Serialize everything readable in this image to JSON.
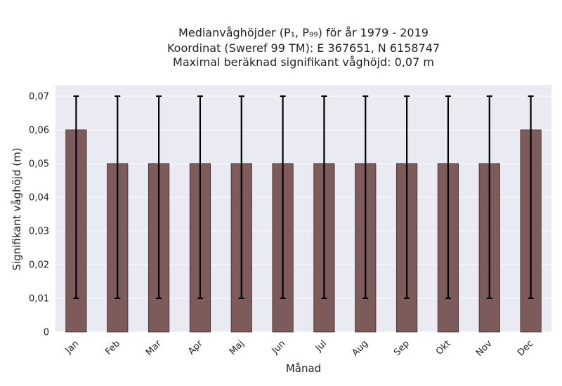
{
  "chart_data": {
    "type": "bar",
    "title": [
      "Medianvåghöjder (P₁, P₉₉) för år 1979 - 2019",
      "Koordinat (Sweref 99 TM): E 367651, N 6158747",
      "Maximal beräknad signifikant våghöjd: 0,07 m"
    ],
    "xlabel": "Månad",
    "ylabel": "Signifikant våghöjd (m)",
    "categories": [
      "Jan",
      "Feb",
      "Mar",
      "Apr",
      "Maj",
      "Jun",
      "Jul",
      "Aug",
      "Sep",
      "Okt",
      "Nov",
      "Dec"
    ],
    "values": [
      0.06,
      0.05,
      0.05,
      0.05,
      0.05,
      0.05,
      0.05,
      0.05,
      0.05,
      0.05,
      0.05,
      0.06
    ],
    "error_low": [
      0.01,
      0.01,
      0.01,
      0.01,
      0.01,
      0.01,
      0.01,
      0.01,
      0.01,
      0.01,
      0.01,
      0.01
    ],
    "error_high": [
      0.07,
      0.07,
      0.07,
      0.07,
      0.07,
      0.07,
      0.07,
      0.07,
      0.07,
      0.07,
      0.07,
      0.07
    ],
    "ylim": [
      0,
      0.07
    ],
    "yticks": [
      0,
      0.01,
      0.02,
      0.03,
      0.04,
      0.05,
      0.06,
      0.07
    ],
    "ytick_labels": [
      "0",
      "0,01",
      "0,02",
      "0,03",
      "0,04",
      "0,05",
      "0,06",
      "0,07"
    ],
    "grid": true,
    "colors": {
      "bar": "#7d5b5b",
      "bar_edge": "#3c2b2b",
      "error_bar": "#000000",
      "plot_background": "#eaeaf2",
      "grid": "#ffffff"
    }
  }
}
